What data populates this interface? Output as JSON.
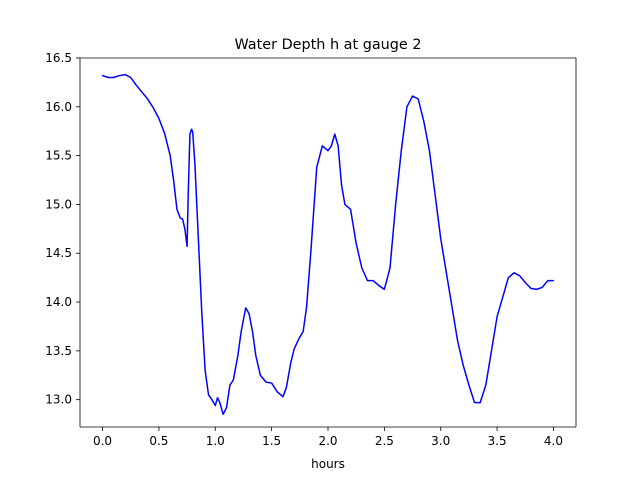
{
  "chart_data": {
    "type": "line",
    "title": "Water Depth h at gauge 2",
    "xlabel": "hours",
    "ylabel": "",
    "xlim": [
      -0.2,
      4.2
    ],
    "ylim": [
      12.72,
      16.5
    ],
    "xticks": [
      0.0,
      0.5,
      1.0,
      1.5,
      2.0,
      2.5,
      3.0,
      3.5,
      4.0
    ],
    "xtick_labels": [
      "0.0",
      "0.5",
      "1.0",
      "1.5",
      "2.0",
      "2.5",
      "3.0",
      "3.5",
      "4.0"
    ],
    "yticks": [
      13.0,
      13.5,
      14.0,
      14.5,
      15.0,
      15.5,
      16.0,
      16.5
    ],
    "ytick_labels": [
      "13.0",
      "13.5",
      "14.0",
      "14.5",
      "15.0",
      "15.5",
      "16.0",
      "16.5"
    ],
    "grid": false,
    "legend": "none",
    "line_color": "#0000ff",
    "series": [
      {
        "x": [
          0.0,
          0.05,
          0.1,
          0.15,
          0.2,
          0.25,
          0.3,
          0.35,
          0.4,
          0.45,
          0.5,
          0.55,
          0.6,
          0.63,
          0.66,
          0.69,
          0.71,
          0.73,
          0.75,
          0.76,
          0.775,
          0.79,
          0.8,
          0.82,
          0.85,
          0.88,
          0.91,
          0.94,
          0.97,
          1.0,
          1.02,
          1.04,
          1.07,
          1.1,
          1.13,
          1.16,
          1.2,
          1.23,
          1.27,
          1.3,
          1.33,
          1.36,
          1.4,
          1.45,
          1.5,
          1.55,
          1.6,
          1.63,
          1.67,
          1.7,
          1.74,
          1.78,
          1.81,
          1.85,
          1.9,
          1.95,
          2.0,
          2.03,
          2.06,
          2.09,
          2.12,
          2.15,
          2.2,
          2.25,
          2.3,
          2.35,
          2.4,
          2.45,
          2.5,
          2.55,
          2.6,
          2.65,
          2.7,
          2.75,
          2.8,
          2.85,
          2.9,
          2.95,
          3.0,
          3.05,
          3.1,
          3.15,
          3.2,
          3.25,
          3.3,
          3.35,
          3.4,
          3.45,
          3.5,
          3.55,
          3.6,
          3.65,
          3.7,
          3.75,
          3.8,
          3.85,
          3.9,
          3.95,
          4.0
        ],
        "y": [
          16.32,
          16.3,
          16.3,
          16.32,
          16.33,
          16.3,
          16.22,
          16.15,
          16.08,
          15.99,
          15.88,
          15.73,
          15.5,
          15.25,
          14.95,
          14.86,
          14.85,
          14.75,
          14.57,
          15.1,
          15.72,
          15.77,
          15.74,
          15.4,
          14.65,
          13.9,
          13.3,
          13.05,
          13.0,
          12.94,
          13.02,
          12.97,
          12.85,
          12.92,
          13.15,
          13.2,
          13.45,
          13.7,
          13.94,
          13.88,
          13.7,
          13.45,
          13.25,
          13.18,
          13.17,
          13.08,
          13.03,
          13.12,
          13.38,
          13.52,
          13.62,
          13.7,
          13.95,
          14.55,
          15.38,
          15.6,
          15.55,
          15.6,
          15.72,
          15.6,
          15.2,
          15.0,
          14.95,
          14.6,
          14.35,
          14.22,
          14.22,
          14.17,
          14.13,
          14.35,
          15.0,
          15.55,
          16.0,
          16.11,
          16.08,
          15.85,
          15.55,
          15.1,
          14.65,
          14.3,
          13.95,
          13.6,
          13.35,
          13.15,
          12.97,
          12.97,
          13.15,
          13.5,
          13.85,
          14.05,
          14.25,
          14.3,
          14.27,
          14.2,
          14.14,
          14.13,
          14.15,
          14.22,
          14.22
        ]
      }
    ]
  }
}
